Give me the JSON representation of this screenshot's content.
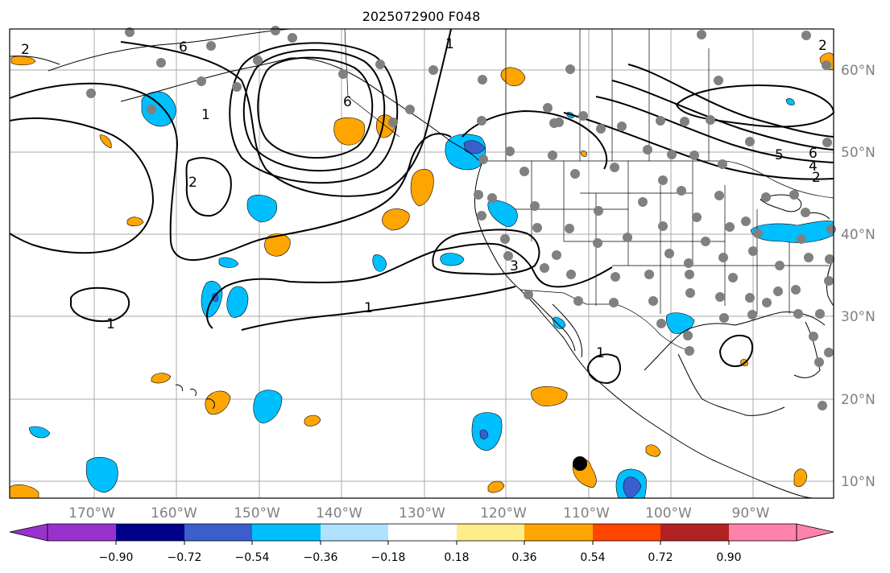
{
  "title": "2025072900 F048",
  "map": {
    "lon_labels": [
      "170°W",
      "160°W",
      "150°W",
      "140°W",
      "130°W",
      "120°W",
      "110°W",
      "100°W",
      "90°W"
    ],
    "lat_labels": [
      "60°N",
      "50°N",
      "40°N",
      "30°N",
      "20°N",
      "10°N"
    ],
    "contour_labels": [
      "2",
      "6",
      "6",
      "2",
      "1",
      "3",
      "1",
      "1",
      "1",
      "5",
      "6",
      "4",
      "2",
      "2",
      "1"
    ]
  },
  "colorbar": {
    "tick_labels": [
      "−0.90",
      "−0.72",
      "−0.54",
      "−0.36",
      "−0.18",
      "0.18",
      "0.36",
      "0.54",
      "0.72",
      "0.90"
    ],
    "colors": [
      "#9932cc",
      "#00008b",
      "#3a5fcd",
      "#00bfff",
      "#b0e2ff",
      "#ffffff",
      "#ffec8b",
      "#ffa500",
      "#ff4500",
      "#b22222",
      "#ff82ab"
    ]
  },
  "colors": {
    "positive_fill": "#ffa500",
    "negative_fill": "#00bfff",
    "strong_negative_fill": "#3a5fcd",
    "station_dot": "#808080",
    "contour": "#000000"
  }
}
